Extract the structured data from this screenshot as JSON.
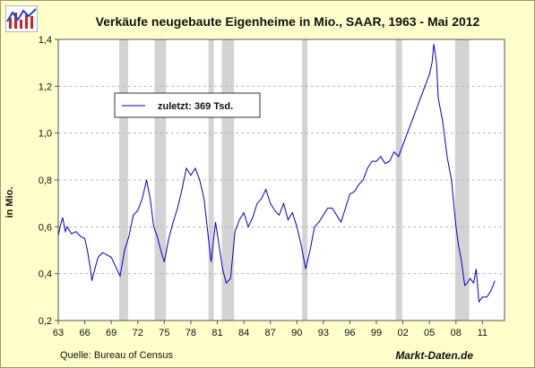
{
  "title": "Verkäufe neugebaute Eigenheime in Mio., SAAR, 1963 - Mai 2012",
  "source": "Quelle: Bureau of Census",
  "brand": "Markt-Daten.de",
  "colors": {
    "background": "#ffffcc",
    "plot": "#ffffff",
    "line": "#0000cc",
    "recession": "#d3d3d3",
    "grid": "#b8b8b8"
  },
  "chart_data": {
    "type": "line",
    "title": "Verkäufe neugebaute Eigenheime in Mio., SAAR, 1963 - Mai 2012",
    "xlabel": "",
    "ylabel": "in Mio.",
    "xlim": [
      1963,
      2013.5
    ],
    "ylim": [
      0.2,
      1.4
    ],
    "grid": true,
    "legend": {
      "position": "top-left",
      "label": "zuletzt: 369  Tsd."
    },
    "x_ticks": [
      {
        "value": 1963,
        "label": "63"
      },
      {
        "value": 1966,
        "label": "66"
      },
      {
        "value": 1969,
        "label": "69"
      },
      {
        "value": 1972,
        "label": "72"
      },
      {
        "value": 1975,
        "label": "75"
      },
      {
        "value": 1978,
        "label": "78"
      },
      {
        "value": 1981,
        "label": "81"
      },
      {
        "value": 1984,
        "label": "84"
      },
      {
        "value": 1987,
        "label": "87"
      },
      {
        "value": 1990,
        "label": "90"
      },
      {
        "value": 1993,
        "label": "93"
      },
      {
        "value": 1996,
        "label": "96"
      },
      {
        "value": 1999,
        "label": "99"
      },
      {
        "value": 2002,
        "label": "02"
      },
      {
        "value": 2005,
        "label": "05"
      },
      {
        "value": 2008,
        "label": "08"
      },
      {
        "value": 2011,
        "label": "11"
      }
    ],
    "y_ticks": [
      {
        "value": 0.2,
        "label": "0,2"
      },
      {
        "value": 0.4,
        "label": "0,4"
      },
      {
        "value": 0.6,
        "label": "0,6"
      },
      {
        "value": 0.8,
        "label": "0,8"
      },
      {
        "value": 1.0,
        "label": "1,0"
      },
      {
        "value": 1.2,
        "label": "1,2"
      },
      {
        "value": 1.4,
        "label": "1,4"
      }
    ],
    "recessions": [
      [
        1969.9,
        1970.9
      ],
      [
        1973.9,
        1975.2
      ],
      [
        1980.0,
        1980.6
      ],
      [
        1981.5,
        1982.9
      ],
      [
        1990.6,
        1991.2
      ],
      [
        2001.2,
        2001.9
      ],
      [
        2007.9,
        2009.5
      ]
    ],
    "series": [
      {
        "values": [
          [
            1963.0,
            0.56
          ],
          [
            1963.2,
            0.6
          ],
          [
            1963.5,
            0.64
          ],
          [
            1963.8,
            0.58
          ],
          [
            1964.0,
            0.6
          ],
          [
            1964.5,
            0.57
          ],
          [
            1965.0,
            0.58
          ],
          [
            1965.5,
            0.56
          ],
          [
            1966.0,
            0.55
          ],
          [
            1966.3,
            0.5
          ],
          [
            1966.6,
            0.43
          ],
          [
            1966.8,
            0.37
          ],
          [
            1967.0,
            0.4
          ],
          [
            1967.5,
            0.47
          ],
          [
            1968.0,
            0.49
          ],
          [
            1968.5,
            0.48
          ],
          [
            1969.0,
            0.47
          ],
          [
            1969.5,
            0.43
          ],
          [
            1970.0,
            0.39
          ],
          [
            1970.5,
            0.5
          ],
          [
            1971.0,
            0.56
          ],
          [
            1971.5,
            0.65
          ],
          [
            1972.0,
            0.67
          ],
          [
            1972.5,
            0.72
          ],
          [
            1973.0,
            0.8
          ],
          [
            1973.4,
            0.72
          ],
          [
            1973.8,
            0.6
          ],
          [
            1974.2,
            0.56
          ],
          [
            1974.6,
            0.5
          ],
          [
            1975.0,
            0.45
          ],
          [
            1975.5,
            0.55
          ],
          [
            1976.0,
            0.62
          ],
          [
            1976.5,
            0.68
          ],
          [
            1977.0,
            0.76
          ],
          [
            1977.5,
            0.85
          ],
          [
            1978.0,
            0.82
          ],
          [
            1978.5,
            0.85
          ],
          [
            1979.0,
            0.8
          ],
          [
            1979.5,
            0.72
          ],
          [
            1980.0,
            0.55
          ],
          [
            1980.3,
            0.45
          ],
          [
            1980.8,
            0.62
          ],
          [
            1981.2,
            0.52
          ],
          [
            1981.6,
            0.42
          ],
          [
            1982.0,
            0.36
          ],
          [
            1982.5,
            0.38
          ],
          [
            1983.0,
            0.58
          ],
          [
            1983.5,
            0.63
          ],
          [
            1984.0,
            0.66
          ],
          [
            1984.5,
            0.6
          ],
          [
            1985.0,
            0.64
          ],
          [
            1985.5,
            0.7
          ],
          [
            1986.0,
            0.72
          ],
          [
            1986.5,
            0.76
          ],
          [
            1987.0,
            0.7
          ],
          [
            1987.5,
            0.67
          ],
          [
            1988.0,
            0.65
          ],
          [
            1988.5,
            0.7
          ],
          [
            1989.0,
            0.63
          ],
          [
            1989.5,
            0.66
          ],
          [
            1990.0,
            0.6
          ],
          [
            1990.5,
            0.52
          ],
          [
            1991.0,
            0.42
          ],
          [
            1991.5,
            0.5
          ],
          [
            1992.0,
            0.6
          ],
          [
            1992.5,
            0.62
          ],
          [
            1993.0,
            0.65
          ],
          [
            1993.5,
            0.68
          ],
          [
            1994.0,
            0.68
          ],
          [
            1994.5,
            0.65
          ],
          [
            1995.0,
            0.62
          ],
          [
            1995.5,
            0.68
          ],
          [
            1996.0,
            0.74
          ],
          [
            1996.5,
            0.75
          ],
          [
            1997.0,
            0.78
          ],
          [
            1997.5,
            0.8
          ],
          [
            1998.0,
            0.85
          ],
          [
            1998.5,
            0.88
          ],
          [
            1999.0,
            0.88
          ],
          [
            1999.5,
            0.9
          ],
          [
            2000.0,
            0.87
          ],
          [
            2000.5,
            0.88
          ],
          [
            2001.0,
            0.92
          ],
          [
            2001.5,
            0.9
          ],
          [
            2002.0,
            0.95
          ],
          [
            2002.5,
            1.0
          ],
          [
            2003.0,
            1.05
          ],
          [
            2003.5,
            1.1
          ],
          [
            2004.0,
            1.15
          ],
          [
            2004.5,
            1.2
          ],
          [
            2005.0,
            1.25
          ],
          [
            2005.3,
            1.3
          ],
          [
            2005.5,
            1.38
          ],
          [
            2005.8,
            1.3
          ],
          [
            2006.0,
            1.15
          ],
          [
            2006.5,
            1.05
          ],
          [
            2007.0,
            0.9
          ],
          [
            2007.5,
            0.8
          ],
          [
            2008.0,
            0.6
          ],
          [
            2008.3,
            0.52
          ],
          [
            2008.6,
            0.46
          ],
          [
            2009.0,
            0.35
          ],
          [
            2009.3,
            0.36
          ],
          [
            2009.6,
            0.38
          ],
          [
            2010.0,
            0.36
          ],
          [
            2010.3,
            0.42
          ],
          [
            2010.6,
            0.28
          ],
          [
            2011.0,
            0.3
          ],
          [
            2011.5,
            0.3
          ],
          [
            2012.0,
            0.33
          ],
          [
            2012.4,
            0.37
          ]
        ]
      }
    ]
  }
}
